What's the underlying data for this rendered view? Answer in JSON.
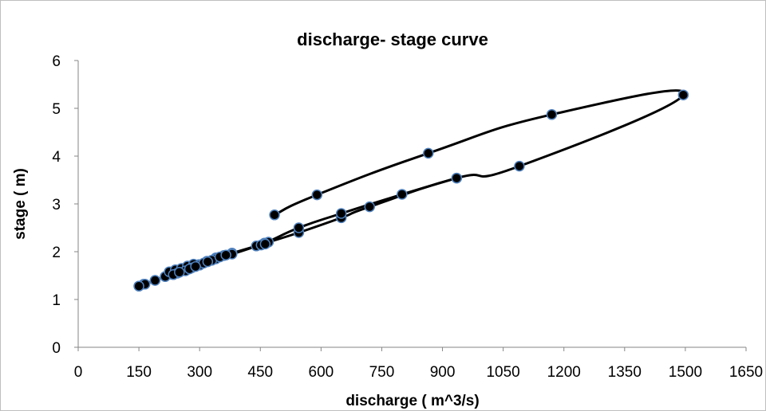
{
  "chart_data": {
    "type": "scatter",
    "title": "discharge- stage curve",
    "xlabel": "discharge ( m^3/s)",
    "ylabel": "stage ( m)",
    "xlim": [
      0,
      1650
    ],
    "ylim": [
      0,
      6
    ],
    "x_ticks": [
      0,
      150,
      300,
      450,
      600,
      750,
      900,
      1050,
      1200,
      1350,
      1500,
      1650
    ],
    "y_ticks": [
      0,
      1,
      2,
      3,
      4,
      5,
      6
    ],
    "grid": false,
    "legend": "none",
    "line_color": "#000000",
    "marker_fill": "#000000",
    "marker_edge": "#4f81bd",
    "series": [
      {
        "style": "smooth-line-with-markers",
        "x": [
          150,
          162,
          190,
          215,
          230,
          245,
          262,
          280,
          298,
          318,
          340,
          360,
          380,
          440,
          470,
          545,
          650,
          720,
          935,
          1090,
          1495,
          1170,
          865,
          590,
          485
        ],
        "y": [
          1.28,
          1.32,
          1.4,
          1.48,
          1.53,
          1.58,
          1.62,
          1.67,
          1.73,
          1.8,
          1.87,
          1.92,
          1.97,
          2.12,
          2.2,
          2.4,
          2.71,
          2.94,
          3.54,
          3.79,
          5.28,
          4.87,
          4.06,
          3.19,
          2.77
        ]
      },
      {
        "style": "smooth-line-with-markers",
        "x": [
          935,
          800,
          650,
          545,
          460,
          380,
          340,
          300,
          270,
          240,
          215,
          190,
          165,
          150
        ],
        "y": [
          3.54,
          3.2,
          2.8,
          2.5,
          2.18,
          1.95,
          1.85,
          1.72,
          1.63,
          1.55,
          1.48,
          1.4,
          1.32,
          1.28
        ]
      },
      {
        "style": "markers",
        "x": [
          225,
          240,
          255,
          270,
          285,
          245,
          265,
          280,
          300,
          310,
          330,
          350,
          365,
          452,
          462,
          235,
          250,
          275,
          290,
          320
        ],
        "y": [
          1.58,
          1.62,
          1.65,
          1.7,
          1.74,
          1.55,
          1.6,
          1.66,
          1.72,
          1.76,
          1.82,
          1.89,
          1.93,
          2.14,
          2.16,
          1.52,
          1.57,
          1.64,
          1.69,
          1.79
        ]
      }
    ]
  }
}
